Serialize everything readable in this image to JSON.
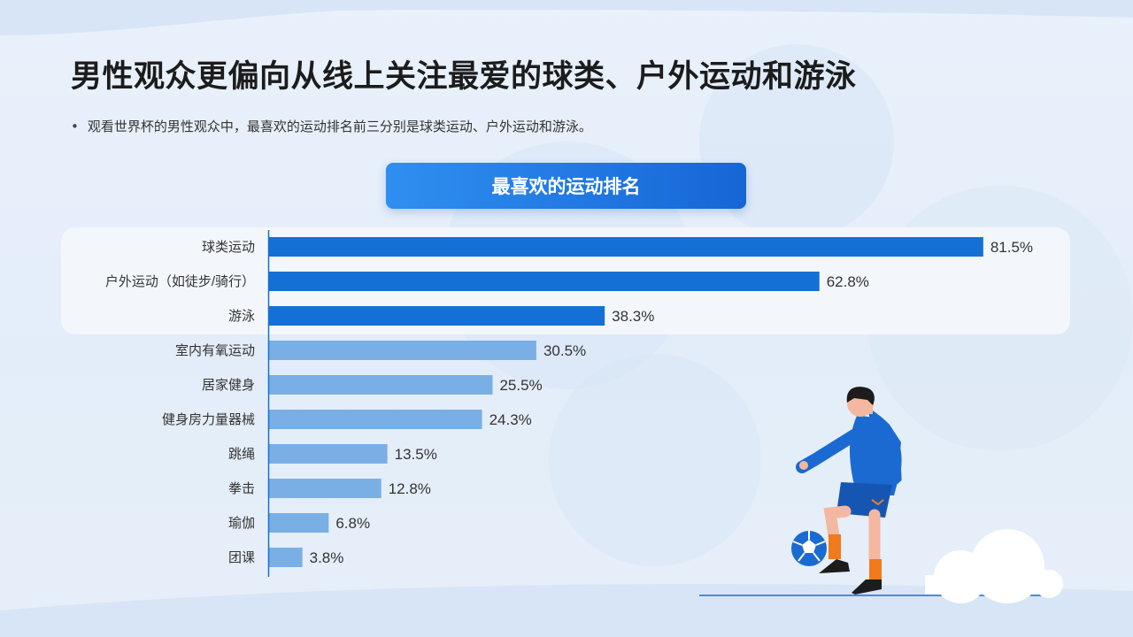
{
  "page": {
    "title": "男性观众更偏向从线上关注最爱的球类、户外运动和游泳",
    "bullet": "观看世界杯的男性观众中，最喜欢的运动排名前三分别是球类运动、户外运动和游泳。",
    "bullet_marker": "•"
  },
  "chart_heading": "最喜欢的运动排名",
  "colors": {
    "top_bar": "#1570d6",
    "other_bar": "#7aafe6",
    "axis": "#1570d6",
    "highlight_panel": "#f3f7fc",
    "heading_start": "#2f8ff0",
    "heading_end": "#1666d6"
  },
  "chart_data": {
    "type": "bar",
    "orientation": "horizontal",
    "title": "最喜欢的运动排名",
    "categories": [
      "球类运动",
      "户外运动（如徒步/骑行）",
      "游泳",
      "室内有氧运动",
      "居家健身",
      "健身房力量器械",
      "跳绳",
      "拳击",
      "瑜伽",
      "团课"
    ],
    "values": [
      81.5,
      62.8,
      38.3,
      30.5,
      25.5,
      24.3,
      13.5,
      12.8,
      6.8,
      3.8
    ],
    "value_labels": [
      "81.5%",
      "62.8%",
      "38.3%",
      "30.5%",
      "25.5%",
      "24.3%",
      "13.5%",
      "12.8%",
      "6.8%",
      "3.8%"
    ],
    "highlighted_top": 3,
    "unit": "%",
    "xlim": [
      0,
      100
    ],
    "grid": false,
    "legend": "none"
  },
  "illustration": {
    "figure": "soccer-player-icon",
    "ball": "soccer-ball-icon",
    "cloud": "cloud-icon"
  }
}
